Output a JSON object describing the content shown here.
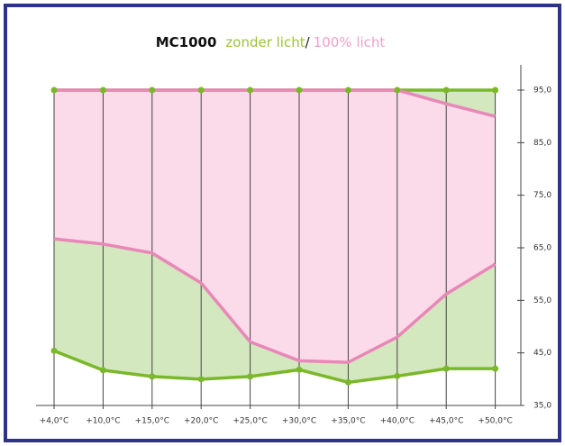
{
  "chart_data": {
    "type": "range-area",
    "title": "MC1000",
    "separator": "/",
    "categories": [
      "+4,0°C",
      "+10,0°C",
      "+15,0°C",
      "+20,0°C",
      "+25,0°C",
      "+30,0°C",
      "+35,0°C",
      "+40,0°C",
      "+45,0°C",
      "+50,0°C"
    ],
    "series": [
      {
        "name": "zonder licht",
        "color": "#7ab829",
        "fill": "#d3e8bf",
        "upper": [
          95,
          95,
          95,
          95,
          95,
          95,
          95,
          95,
          95,
          95
        ],
        "lower": [
          45.4,
          41.7,
          40.5,
          40,
          40.5,
          41.8,
          39.4,
          40.6,
          42,
          42
        ]
      },
      {
        "name": "100% licht",
        "color": "#e887b8",
        "fill": "#fbdbe9",
        "upper": [
          95,
          95,
          95,
          95,
          95,
          95,
          95,
          95,
          92.4,
          90
        ],
        "lower": [
          66.7,
          65.7,
          64,
          58.3,
          47.1,
          43.5,
          43.2,
          48,
          56.2,
          61.9
        ]
      }
    ],
    "ylim": [
      35,
      95
    ],
    "yticks": [
      {
        "value": 35,
        "label": "35,0"
      },
      {
        "value": 45,
        "label": "45,0"
      },
      {
        "value": 55,
        "label": "55,0"
      },
      {
        "value": 65,
        "label": "65,0"
      },
      {
        "value": 75,
        "label": "75,0"
      },
      {
        "value": 85,
        "label": "85,0"
      },
      {
        "value": 95,
        "label": "95,0"
      }
    ],
    "grid": true
  }
}
